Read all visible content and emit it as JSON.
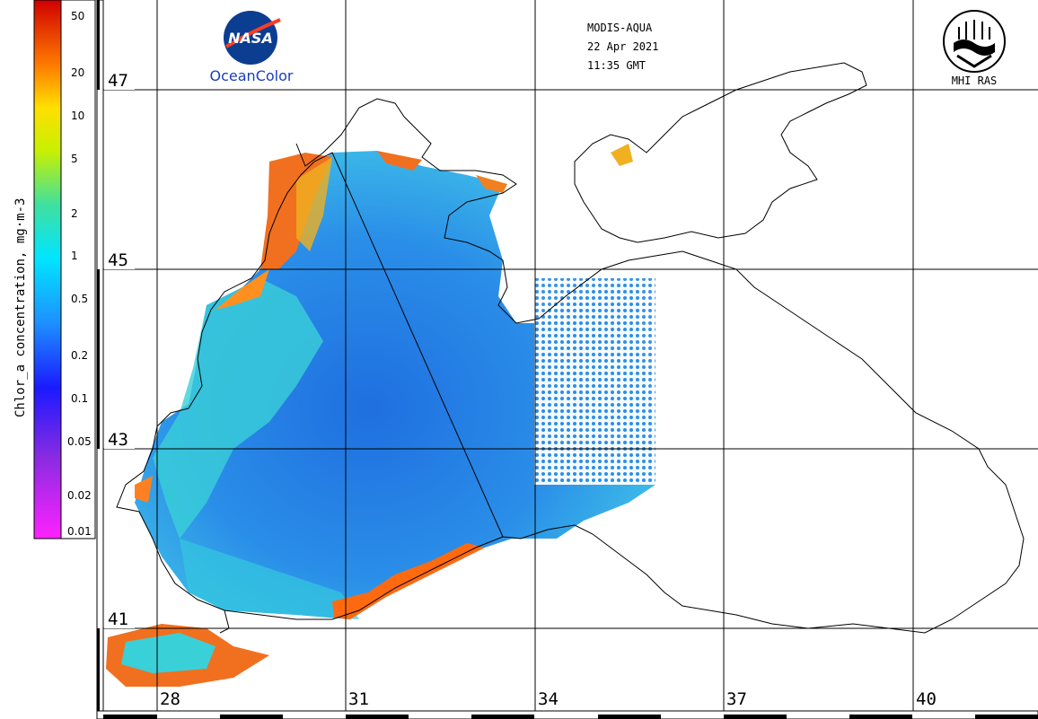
{
  "header": {
    "sensor": "MODIS-AQUA",
    "date": "22 Apr 2021",
    "time": "11:35 GMT"
  },
  "logos": {
    "nasa_text": "NASA",
    "oceancolor_text": "OceanColor",
    "mhi_text": "MHI RAS"
  },
  "colorbar": {
    "unit_label": "Chlor_a concentration, mg·m-3",
    "ticks": [
      "50",
      "20",
      "10",
      "5",
      "2",
      "1",
      "0.5",
      "0.2",
      "0.1",
      "0.05",
      "0.02",
      "0.01"
    ],
    "scale": "log"
  },
  "map": {
    "lat_labels": [
      "47",
      "45",
      "43",
      "41"
    ],
    "lon_labels": [
      "28",
      "31",
      "34",
      "37",
      "40"
    ]
  },
  "colors": {
    "low_chl": "#1f6fe0",
    "mid_chl": "#2ad8e8",
    "high_chl": "#f06a1a",
    "grid": "#000000"
  }
}
